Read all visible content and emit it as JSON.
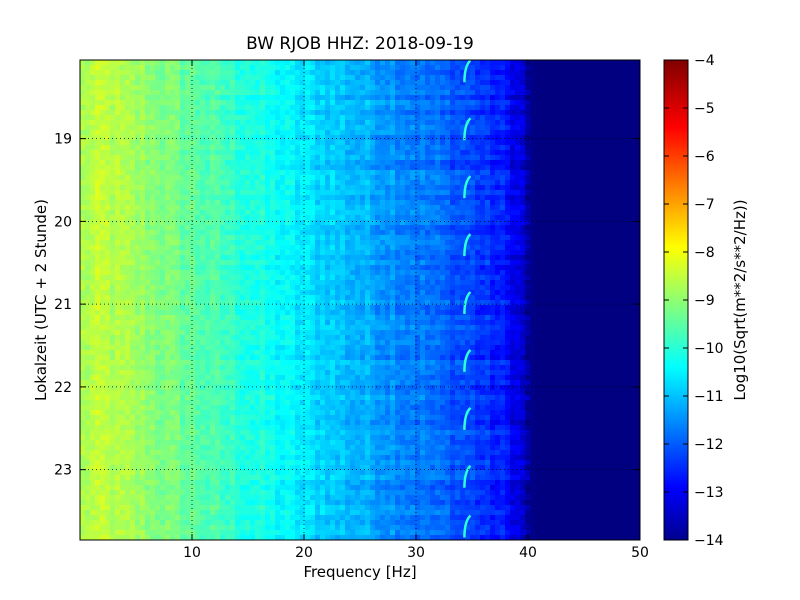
{
  "chart_data": {
    "type": "heatmap",
    "title": "BW RJOB HHZ: 2018-09-19",
    "xlabel": "Frequency [Hz]",
    "ylabel": "Lokalzeit (UTC + 2 Stunde)",
    "xlim": [
      0,
      50
    ],
    "ylim": [
      18.05,
      23.85
    ],
    "y_inverted": true,
    "x_ticks": [
      10,
      20,
      30,
      40,
      50
    ],
    "y_ticks": [
      19,
      20,
      21,
      22,
      23
    ],
    "grid": "dotted",
    "colormap": "jet",
    "colorbar": {
      "label": "Log10(Sqrt(m**2/s**2/Hz))",
      "range": [
        -14,
        -4
      ],
      "ticks": [
        -14,
        -13,
        -12,
        -11,
        -10,
        -9,
        -8,
        -7,
        -6,
        -5,
        -4
      ]
    },
    "spectral_profile": {
      "frequency_hz": [
        0,
        2,
        5,
        10,
        15,
        20,
        25,
        30,
        35,
        38,
        39.5,
        40.5,
        42,
        50
      ],
      "log10_level": [
        -8.6,
        -8.4,
        -8.7,
        -9.3,
        -9.9,
        -10.5,
        -11.0,
        -11.5,
        -12.1,
        -12.6,
        -13.2,
        -14,
        -14,
        -14
      ]
    },
    "features": [
      {
        "type": "tone",
        "frequency_hz": 34.5,
        "hours": [
          18.15,
          18.85,
          19.55,
          20.25,
          20.95,
          21.65,
          22.35,
          23.05,
          23.65
        ]
      }
    ]
  }
}
